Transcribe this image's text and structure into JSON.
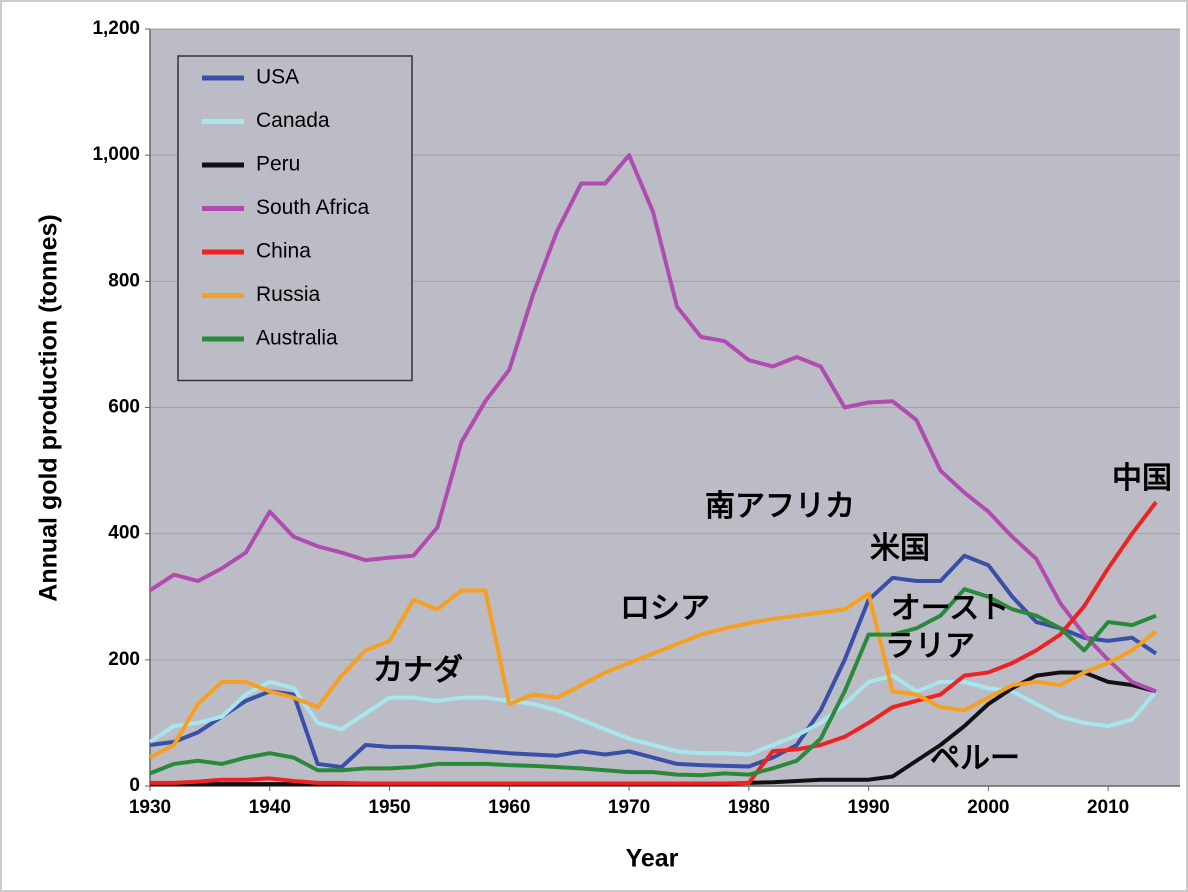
{
  "chart_data": {
    "type": "line",
    "xlabel": "Year",
    "ylabel": "Annual gold production (tonnes)",
    "xlim": [
      1930,
      2016
    ],
    "ylim": [
      0,
      1200
    ],
    "xticks": [
      1930,
      1940,
      1950,
      1960,
      1970,
      1980,
      1990,
      2000,
      2010
    ],
    "yticks": [
      0,
      200,
      400,
      600,
      800,
      {
        "value": 1000,
        "label": "1,000"
      },
      {
        "value": 1200,
        "label": "1,200"
      }
    ],
    "grid": true,
    "legend": "upper left",
    "x": [
      1930,
      1932,
      1934,
      1936,
      1938,
      1940,
      1942,
      1944,
      1946,
      1948,
      1950,
      1952,
      1954,
      1956,
      1958,
      1960,
      1962,
      1964,
      1966,
      1968,
      1970,
      1972,
      1974,
      1976,
      1978,
      1980,
      1982,
      1984,
      1986,
      1988,
      1990,
      1992,
      1994,
      1996,
      1998,
      2000,
      2002,
      2004,
      2006,
      2008,
      2010,
      2012,
      2014
    ],
    "series": [
      {
        "name": "USA",
        "color": "#3a4fa8",
        "values": [
          65,
          70,
          85,
          110,
          135,
          150,
          145,
          35,
          30,
          65,
          62,
          62,
          60,
          58,
          55,
          52,
          50,
          48,
          55,
          50,
          55,
          45,
          35,
          33,
          32,
          31,
          45,
          65,
          120,
          200,
          295,
          330,
          325,
          325,
          365,
          350,
          300,
          260,
          250,
          235,
          230,
          235,
          210
        ]
      },
      {
        "name": "Canada",
        "color": "#a8e6ef",
        "values": [
          70,
          95,
          100,
          110,
          145,
          165,
          155,
          100,
          90,
          115,
          140,
          140,
          135,
          140,
          140,
          135,
          130,
          120,
          105,
          90,
          75,
          65,
          55,
          52,
          52,
          50,
          65,
          80,
          100,
          130,
          165,
          175,
          150,
          165,
          165,
          155,
          150,
          130,
          110,
          100,
          95,
          105,
          150
        ]
      },
      {
        "name": "Peru",
        "color": "#111111",
        "values": [
          3,
          3,
          3,
          3,
          3,
          3,
          3,
          3,
          3,
          3,
          3,
          3,
          3,
          3,
          3,
          3,
          3,
          3,
          3,
          3,
          3,
          3,
          3,
          3,
          3,
          5,
          6,
          8,
          10,
          10,
          10,
          15,
          40,
          65,
          95,
          130,
          155,
          175,
          180,
          180,
          165,
          160,
          150
        ]
      },
      {
        "name": "South Africa",
        "color": "#b04cb0",
        "values": [
          310,
          335,
          325,
          345,
          370,
          435,
          395,
          380,
          370,
          358,
          362,
          365,
          410,
          545,
          610,
          660,
          780,
          880,
          955,
          955,
          1000,
          910,
          760,
          712,
          705,
          675,
          665,
          680,
          665,
          600,
          608,
          610,
          580,
          500,
          465,
          435,
          395,
          360,
          290,
          240,
          200,
          165,
          150
        ]
      },
      {
        "name": "China",
        "color": "#ee2222",
        "values": [
          5,
          5,
          7,
          10,
          10,
          12,
          8,
          5,
          5,
          4,
          4,
          4,
          4,
          4,
          4,
          4,
          4,
          4,
          4,
          4,
          4,
          4,
          4,
          4,
          4,
          5,
          55,
          58,
          65,
          78,
          100,
          125,
          135,
          145,
          175,
          180,
          195,
          215,
          240,
          285,
          345,
          400,
          450
        ]
      },
      {
        "name": "Russia",
        "color": "#f5a020",
        "values": [
          45,
          65,
          130,
          165,
          165,
          150,
          140,
          125,
          175,
          215,
          230,
          295,
          280,
          310,
          310,
          130,
          145,
          140,
          160,
          180,
          195,
          210,
          225,
          240,
          250,
          258,
          265,
          270,
          275,
          280,
          305,
          150,
          145,
          125,
          120,
          140,
          160,
          165,
          160,
          180,
          195,
          215,
          245
        ]
      },
      {
        "name": "Australia",
        "color": "#2a8a3a",
        "values": [
          20,
          35,
          40,
          35,
          45,
          52,
          45,
          25,
          25,
          28,
          28,
          30,
          35,
          35,
          35,
          33,
          32,
          30,
          28,
          25,
          22,
          22,
          18,
          17,
          20,
          18,
          28,
          40,
          75,
          150,
          240,
          240,
          250,
          270,
          312,
          300,
          280,
          270,
          250,
          215,
          260,
          255,
          270
        ]
      }
    ],
    "annotations": [
      "南アフリカ",
      "米国",
      "オースト",
      "ラリア",
      "ロシア",
      "カナダ",
      "ペルー",
      "中国"
    ]
  }
}
